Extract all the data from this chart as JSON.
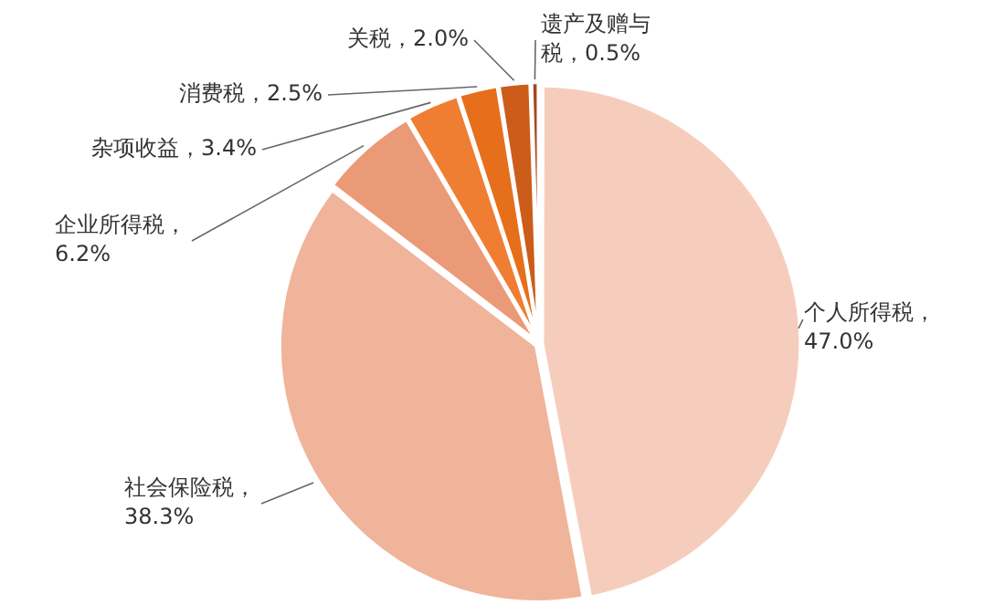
{
  "chart_data": {
    "type": "pie",
    "values": [
      47.0,
      38.3,
      6.2,
      3.4,
      2.5,
      2.0,
      0.5
    ],
    "value_labels": [
      "个人所得税，47.0%",
      "社会保险税，38.3%",
      "企业所得税，6.2%",
      "杂项收益，3.4%",
      "消费税，2.5%",
      "关税，2.0%",
      "遗产及赠与税，0.5%"
    ],
    "colors": [
      "#f6cdbd",
      "#f0b49b",
      "#ea9a76",
      "#ef7e33",
      "#e66f1c",
      "#cc5c1a",
      "#a8461a"
    ],
    "legend": false
  }
}
